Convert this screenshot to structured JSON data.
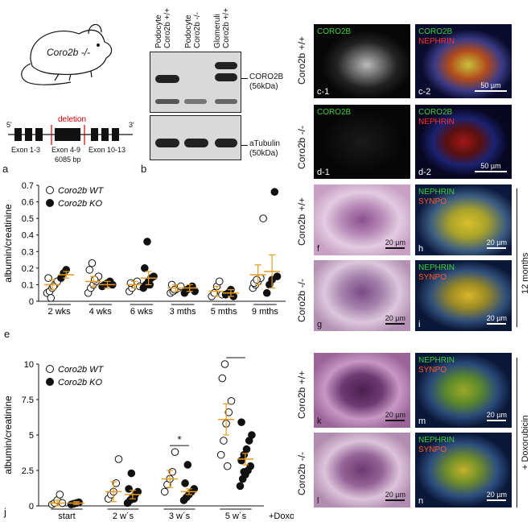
{
  "panels": {
    "a": "a",
    "b": "b",
    "e": "e",
    "j": "j",
    "c1": "c-1",
    "c2": "c-2",
    "d1": "d-1",
    "d2": "d-2",
    "f": "f",
    "g": "g",
    "h": "h",
    "i": "i",
    "k": "k",
    "l": "l",
    "m": "m",
    "n": "n"
  },
  "mouse": {
    "label": "Coro2b -/-"
  },
  "gene": {
    "prime5": "5'",
    "prime3": "3'",
    "deletion": "deletion",
    "exon_left": "Exon 1-3",
    "exon_mid": "Exon 4-9",
    "bp": "6085 bp",
    "exon_right": "Exon 10-13"
  },
  "blot": {
    "lanes": [
      {
        "line1": "Podocyte",
        "line2": "Coro2b +/+"
      },
      {
        "line1": "Podocyte",
        "line2": "Coro2b -/-"
      },
      {
        "line1": "Glomeruli",
        "line2": "Coro2b +/+"
      }
    ],
    "target1": "CORO2B",
    "target1_kda": "(56kDa)",
    "target2": "aTubulin",
    "target2_kda": "(50kDa)"
  },
  "micro": {
    "wt": "Coro2b +/+",
    "ko": "Coro2b -/-",
    "coro2b": "CORO2B",
    "nephrin": "NEPHRIN",
    "synpo": "SYNPO",
    "scale50": "50 µm",
    "scale20": "20 µm",
    "months12": "12 months",
    "doxorubicin": "+ Doxorubicin"
  },
  "chart_data": [
    {
      "type": "scatter",
      "ylabel": "albumin/creatinine",
      "categories": [
        "2 wks",
        "4 wks",
        "6 wks",
        "3 mths",
        "5 mths",
        "9 mths"
      ],
      "ylim": [
        0,
        0.7
      ],
      "yticks": [
        "0",
        "0.1",
        "0.2",
        "0.3",
        "0.4",
        "0.5",
        "0.6",
        "0.7"
      ],
      "series": [
        {
          "name": "Coro2b WT",
          "marker": "open",
          "mean": [
            0.1,
            0.12,
            0.1,
            0.08,
            0.06,
            0.16
          ],
          "sem": [
            0.03,
            0.03,
            0.02,
            0.02,
            0.03,
            0.06
          ],
          "values": [
            [
              0.05,
              0.06,
              0.08,
              0.1,
              0.12,
              0.14,
              0.02,
              0.09
            ],
            [
              0.05,
              0.08,
              0.1,
              0.12,
              0.15,
              0.19,
              0.23,
              0.13
            ],
            [
              0.06,
              0.08,
              0.1,
              0.12,
              0.09,
              0.11
            ],
            [
              0.05,
              0.06,
              0.07,
              0.08,
              0.09,
              0.1,
              0.07
            ],
            [
              0.03,
              0.05,
              0.09,
              0.12,
              0.04
            ],
            [
              0.08,
              0.1,
              0.12,
              0.14,
              0.5,
              0.11,
              0.13
            ]
          ]
        },
        {
          "name": "Coro2b KO",
          "marker": "filled",
          "mean": [
            0.16,
            0.1,
            0.14,
            0.08,
            0.05,
            0.18
          ],
          "sem": [
            0.02,
            0.02,
            0.04,
            0.02,
            0.02,
            0.1
          ],
          "values": [
            [
              0.14,
              0.17,
              0.19
            ],
            [
              0.09,
              0.1,
              0.11,
              0.12,
              0.1
            ],
            [
              0.08,
              0.1,
              0.12,
              0.14,
              0.15,
              0.2,
              0.36,
              0.1
            ],
            [
              0.05,
              0.07,
              0.08,
              0.09,
              0.06
            ],
            [
              0.04,
              0.05,
              0.07,
              0.03
            ],
            [
              0.05,
              0.1,
              0.13,
              0.66,
              0.15
            ]
          ]
        }
      ]
    },
    {
      "type": "scatter",
      "ylabel": "albumin/creatinine",
      "categories": [
        "start",
        "2 w´s",
        "3 w´s",
        "5 w´s"
      ],
      "xsuffix": "+Doxo",
      "ylim": [
        0,
        10
      ],
      "yticks": [
        "0",
        "2.5",
        "5",
        "7.5",
        "10"
      ],
      "significance": [
        {
          "category": "3 w´s",
          "label": "*"
        },
        {
          "category": "5 w´s",
          "label": "**"
        }
      ],
      "series": [
        {
          "name": "Coro2b WT",
          "marker": "open",
          "mean": [
            0.2,
            1.0,
            1.9,
            6.1
          ],
          "sem": [
            0.2,
            0.7,
            0.6,
            1.1
          ],
          "values": [
            [
              0.1,
              0.2,
              0.4,
              0.8,
              0.2
            ],
            [
              0.5,
              0.8,
              1.0,
              1.6,
              3.3
            ],
            [
              1.0,
              1.5,
              1.9,
              2.4,
              3.8
            ],
            [
              3.6,
              4.6,
              5.8,
              6.6,
              7.4,
              9.0,
              10.0,
              2.8
            ]
          ]
        },
        {
          "name": "Coro2b KO",
          "marker": "filled",
          "mean": [
            0.2,
            0.8,
            1.0,
            3.3
          ],
          "sem": [
            0.1,
            0.3,
            0.2,
            0.4
          ],
          "values": [
            [
              0.1,
              0.15,
              0.2,
              0.25
            ],
            [
              0.2,
              0.4,
              0.6,
              0.8,
              1.0,
              1.2,
              2.3,
              0.5
            ],
            [
              0.4,
              0.6,
              0.8,
              1.0,
              1.2,
              1.6,
              2.9
            ],
            [
              1.4,
              1.9,
              2.2,
              2.5,
              2.8,
              3.2,
              3.6,
              4.0,
              4.6,
              5.0,
              5.9,
              2.4
            ]
          ]
        }
      ]
    }
  ]
}
